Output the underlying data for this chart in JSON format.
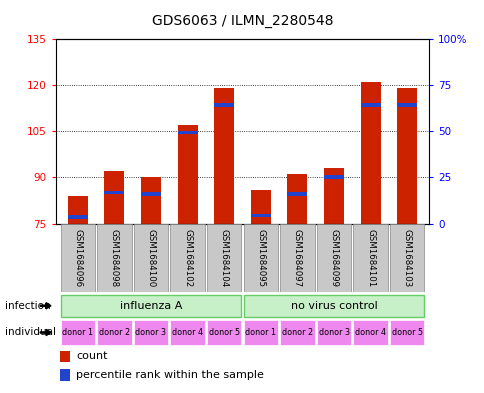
{
  "title": "GDS6063 / ILMN_2280548",
  "samples": [
    "GSM1684096",
    "GSM1684098",
    "GSM1684100",
    "GSM1684102",
    "GSM1684104",
    "GSM1684095",
    "GSM1684097",
    "GSM1684099",
    "GSM1684101",
    "GSM1684103"
  ],
  "red_values": [
    84,
    92,
    90,
    107,
    119,
    86,
    91,
    93,
    121,
    119
  ],
  "blue_values": [
    76.5,
    84.5,
    84.0,
    104.0,
    113.0,
    77.0,
    84.0,
    89.5,
    113.0,
    113.0
  ],
  "blue_heights": [
    1.2,
    1.2,
    1.2,
    1.2,
    1.2,
    1.2,
    1.2,
    1.2,
    1.2,
    1.2
  ],
  "ylim": [
    75,
    135
  ],
  "yticks_left": [
    75,
    90,
    105,
    120,
    135
  ],
  "yticks_right_pct": [
    0,
    25,
    50,
    75,
    100
  ],
  "bar_color": "#cc2200",
  "blue_color": "#2244cc",
  "infection_color_light": "#c8f0c8",
  "infection_color_border": "#66cc66",
  "individual_color": "#ee88ee",
  "sample_bg": "#c8c8c8",
  "title_fontsize": 10
}
